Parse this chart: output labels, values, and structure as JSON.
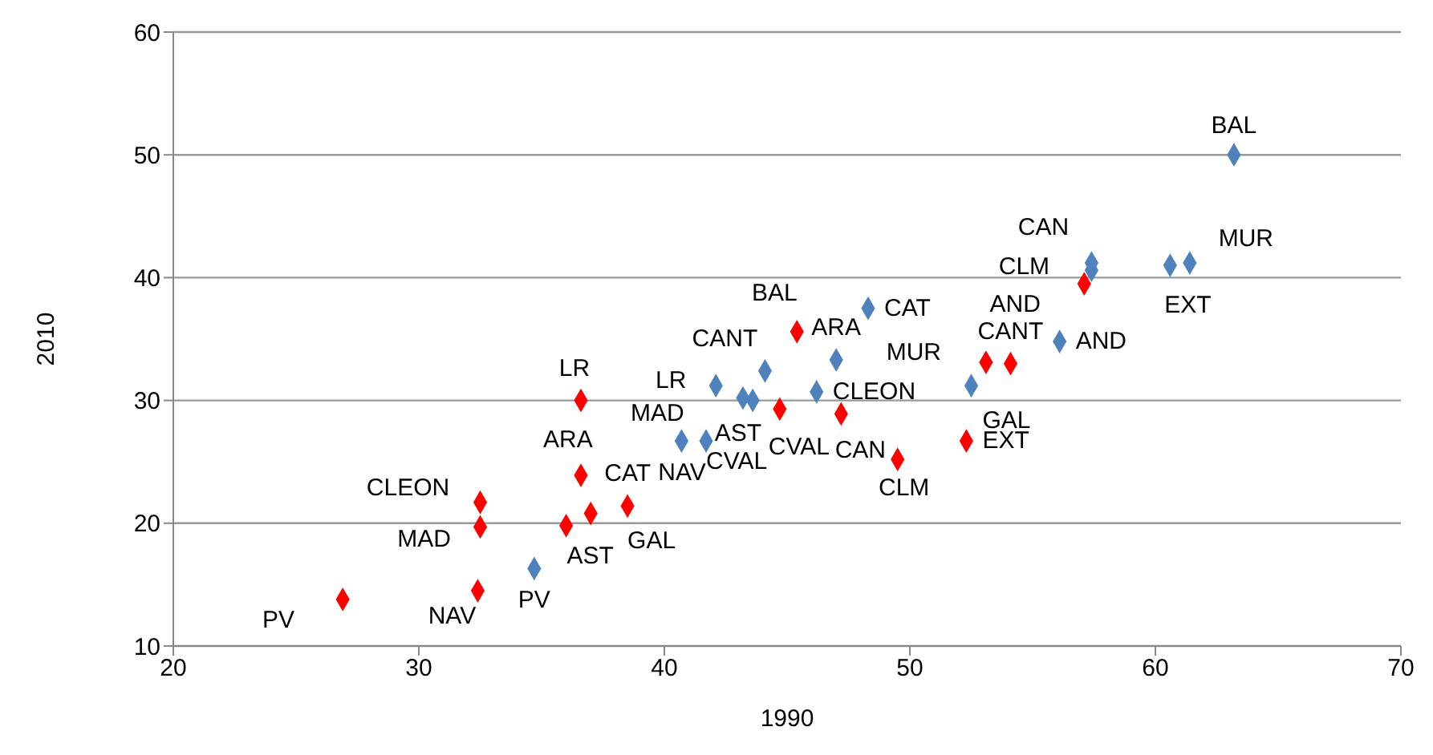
{
  "chart_data": {
    "type": "scatter",
    "xlabel": "1990",
    "ylabel": "2010",
    "xlim": [
      20,
      70
    ],
    "xticks": [
      20,
      30,
      40,
      50,
      60,
      70
    ],
    "ylim": [
      10,
      60
    ],
    "yticks": [
      10,
      20,
      30,
      40,
      50,
      60
    ],
    "grid": "y",
    "marker": "diamond",
    "series": [
      {
        "color": "#4f81bd",
        "x": [
          34.7,
          40.7,
          41.7,
          42.1,
          43.2,
          43.6,
          44.1,
          46.2,
          47.0,
          48.3,
          52.5,
          56.1,
          57.4,
          57.4,
          60.6,
          61.4,
          63.2
        ],
        "values": [
          16.3,
          26.7,
          26.7,
          31.2,
          30.2,
          30.0,
          32.4,
          30.7,
          33.3,
          37.5,
          31.2,
          34.8,
          40.6,
          41.2,
          41.0,
          41.2,
          50.0
        ],
        "value_labels": [
          "PV",
          "MAD",
          "NAV",
          "LR",
          "AST",
          "CVAL",
          "CANT",
          "CLEON",
          "ARA",
          "CAT",
          "GAL",
          "AND",
          "CLM",
          "CAN",
          "EXT",
          "MUR",
          "BAL"
        ]
      },
      {
        "color": "#ff0000",
        "x": [
          26.9,
          32.4,
          32.5,
          32.5,
          36.0,
          36.6,
          37.0,
          38.5,
          36.6,
          45.4,
          44.7,
          47.2,
          49.5,
          52.3,
          53.1,
          54.1,
          57.1
        ],
        "values": [
          13.8,
          14.5,
          19.7,
          21.7,
          19.8,
          23.9,
          20.8,
          21.4,
          30.0,
          35.6,
          29.3,
          28.9,
          25.2,
          26.7,
          33.1,
          33.0,
          39.5
        ],
        "value_labels": [
          "PV",
          "NAV",
          "MAD",
          "CLEON",
          "AST",
          "ARA",
          "CAT",
          "GAL",
          "LR",
          "BAL",
          "CVAL",
          "CAN",
          "CLM",
          "EXT",
          "MUR",
          "CANT",
          "AND"
        ]
      }
    ]
  }
}
